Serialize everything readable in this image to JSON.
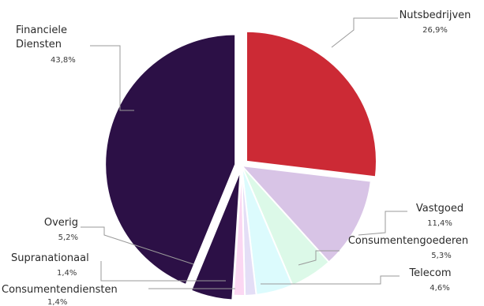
{
  "chart_data": {
    "type": "pie",
    "title": "",
    "slices": [
      {
        "label": "Nutsbedrijven",
        "value_label": "26,9%",
        "value": 26.9,
        "color": "#cc2a35"
      },
      {
        "label": "Vastgoed",
        "value_label": "11,4%",
        "value": 11.4,
        "color": "#d8c4e6"
      },
      {
        "label": "Consumentengoederen",
        "value_label": "5,3%",
        "value": 5.3,
        "color": "#dcf9e8"
      },
      {
        "label": "Telecom",
        "value_label": "4,6%",
        "value": 4.6,
        "color": "#dcfbfd"
      },
      {
        "label": "Consumentendiensten",
        "value_label": "1,4%",
        "value": 1.4,
        "color": "#e4def6"
      },
      {
        "label": "Supranationaal",
        "value_label": "1,4%",
        "value": 1.4,
        "color": "#fbd7f2"
      },
      {
        "label": "Overig",
        "value_label": "5,2%",
        "value": 5.2,
        "color": "#2c1046"
      },
      {
        "label": "Financiele Diensten",
        "value_label": "43,8%",
        "value": 43.8,
        "color": "#2c1046"
      }
    ]
  }
}
